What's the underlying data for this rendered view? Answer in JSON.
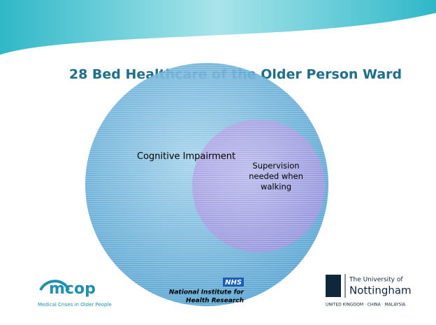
{
  "title": "28 Bed Healthcare of the Older Person Ward",
  "nodes": [
    {
      "label": "Cognitive Impairment"
    },
    {
      "label": "Supervision needed when walking"
    }
  ],
  "logos": {
    "mcop": {
      "name": "mcop",
      "tagline": "Medical Crises in Older People"
    },
    "nihr": {
      "nhs": "NHS",
      "line1": "National Institute for",
      "line2": "Health Research"
    },
    "nottingham": {
      "line1": "The University of",
      "line2": "Nottingham",
      "line3": "UNITED KINGDOM · CHINA · MALAYSIA"
    }
  }
}
